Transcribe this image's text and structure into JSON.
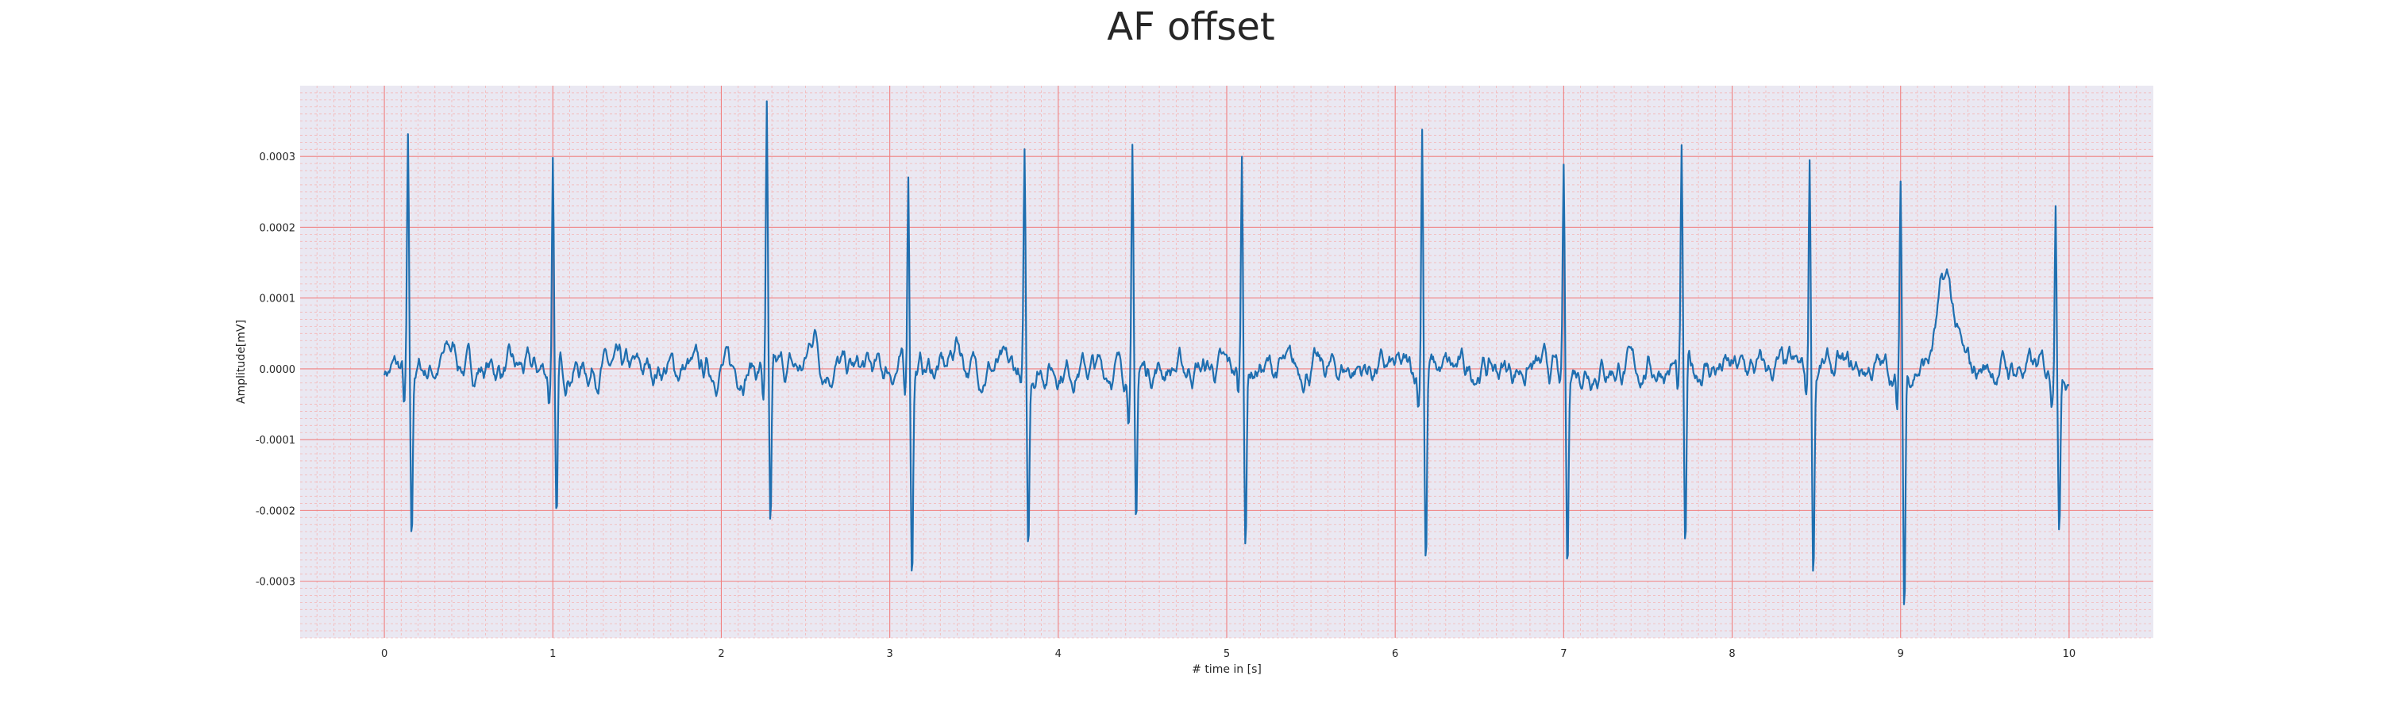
{
  "chart_data": {
    "type": "line",
    "title": "AF offset",
    "xlabel": "# time in [s]",
    "ylabel": "Amplitude[mV]",
    "xlim": [
      -0.5,
      10.5
    ],
    "ylim": [
      -0.00038,
      0.0004
    ],
    "xticks": [
      0,
      1,
      2,
      3,
      4,
      5,
      6,
      7,
      8,
      9,
      10
    ],
    "xtick_labels": [
      "0",
      "1",
      "2",
      "3",
      "4",
      "5",
      "6",
      "7",
      "8",
      "9",
      "10"
    ],
    "yticks": [
      -0.0003,
      -0.0002,
      -0.0001,
      0.0,
      0.0001,
      0.0002,
      0.0003
    ],
    "ytick_labels": [
      "-0.0003",
      "-0.0002",
      "-0.0001",
      "0.0000",
      "0.0001",
      "0.0002",
      "0.0003"
    ],
    "grid": true,
    "background": "#eae8f2",
    "colors": {
      "line": "#1f6fb0",
      "major_grid": "#f08080",
      "minor_grid": "#f4b6b6"
    },
    "beats": [
      {
        "t": 0.14,
        "peak": 0.00031,
        "q": -6e-05,
        "s": -0.00026
      },
      {
        "t": 1.0,
        "peak": 0.0003,
        "q": -4e-05,
        "s": -0.00024
      },
      {
        "t": 2.27,
        "peak": 0.000365,
        "q": -4e-05,
        "s": -0.000255
      },
      {
        "t": 3.11,
        "peak": 0.000285,
        "q": -5e-05,
        "s": -0.00028
      },
      {
        "t": 3.8,
        "peak": 0.00029,
        "q": -3e-05,
        "s": -0.00026
      },
      {
        "t": 4.44,
        "peak": 0.000295,
        "q": -5e-05,
        "s": -0.00023
      },
      {
        "t": 5.09,
        "peak": 0.0003,
        "q": -4e-05,
        "s": -0.000235
      },
      {
        "t": 6.16,
        "peak": 0.000355,
        "q": -5e-05,
        "s": -0.000275
      },
      {
        "t": 7.0,
        "peak": 0.000275,
        "q": -4e-05,
        "s": -0.00029
      },
      {
        "t": 7.7,
        "peak": 0.000295,
        "q": -4e-05,
        "s": -0.00027
      },
      {
        "t": 8.46,
        "peak": 0.0003,
        "q": -4e-05,
        "s": -0.000285
      },
      {
        "t": 9.0,
        "peak": 0.000245,
        "q": -7e-05,
        "s": -0.00035
      },
      {
        "t": 9.92,
        "peak": 0.000265,
        "q": -3e-05,
        "s": -0.000235
      }
    ],
    "waves": [
      {
        "t": 0.4,
        "amp": 3e-05,
        "width": 0.05
      },
      {
        "t": 2.55,
        "amp": 5.5e-05,
        "width": 0.035
      },
      {
        "t": 3.4,
        "amp": 4e-05,
        "width": 0.04
      },
      {
        "t": 9.27,
        "amp": 0.000125,
        "width": 0.07
      }
    ]
  }
}
